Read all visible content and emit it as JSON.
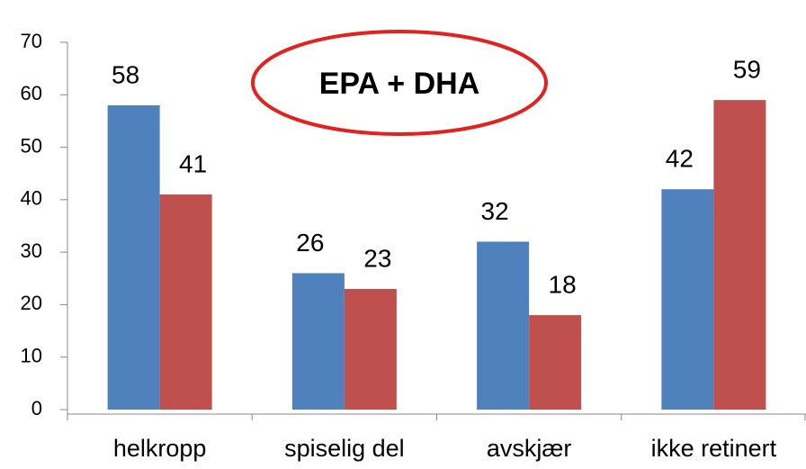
{
  "chart_data": {
    "type": "bar",
    "annotation": "EPA + DHA",
    "annotation_color": "#e3221f",
    "categories": [
      "helkropp",
      "spiselig del",
      "avskjær",
      "ikke retinert"
    ],
    "series": [
      {
        "color": "#4f81bd",
        "values": [
          58,
          26,
          32,
          42
        ]
      },
      {
        "color": "#c0504d",
        "values": [
          41,
          23,
          18,
          59
        ]
      }
    ],
    "ylim": [
      0,
      70
    ],
    "yticks": [
      0,
      10,
      20,
      30,
      40,
      50,
      60,
      70
    ],
    "grid": false
  }
}
